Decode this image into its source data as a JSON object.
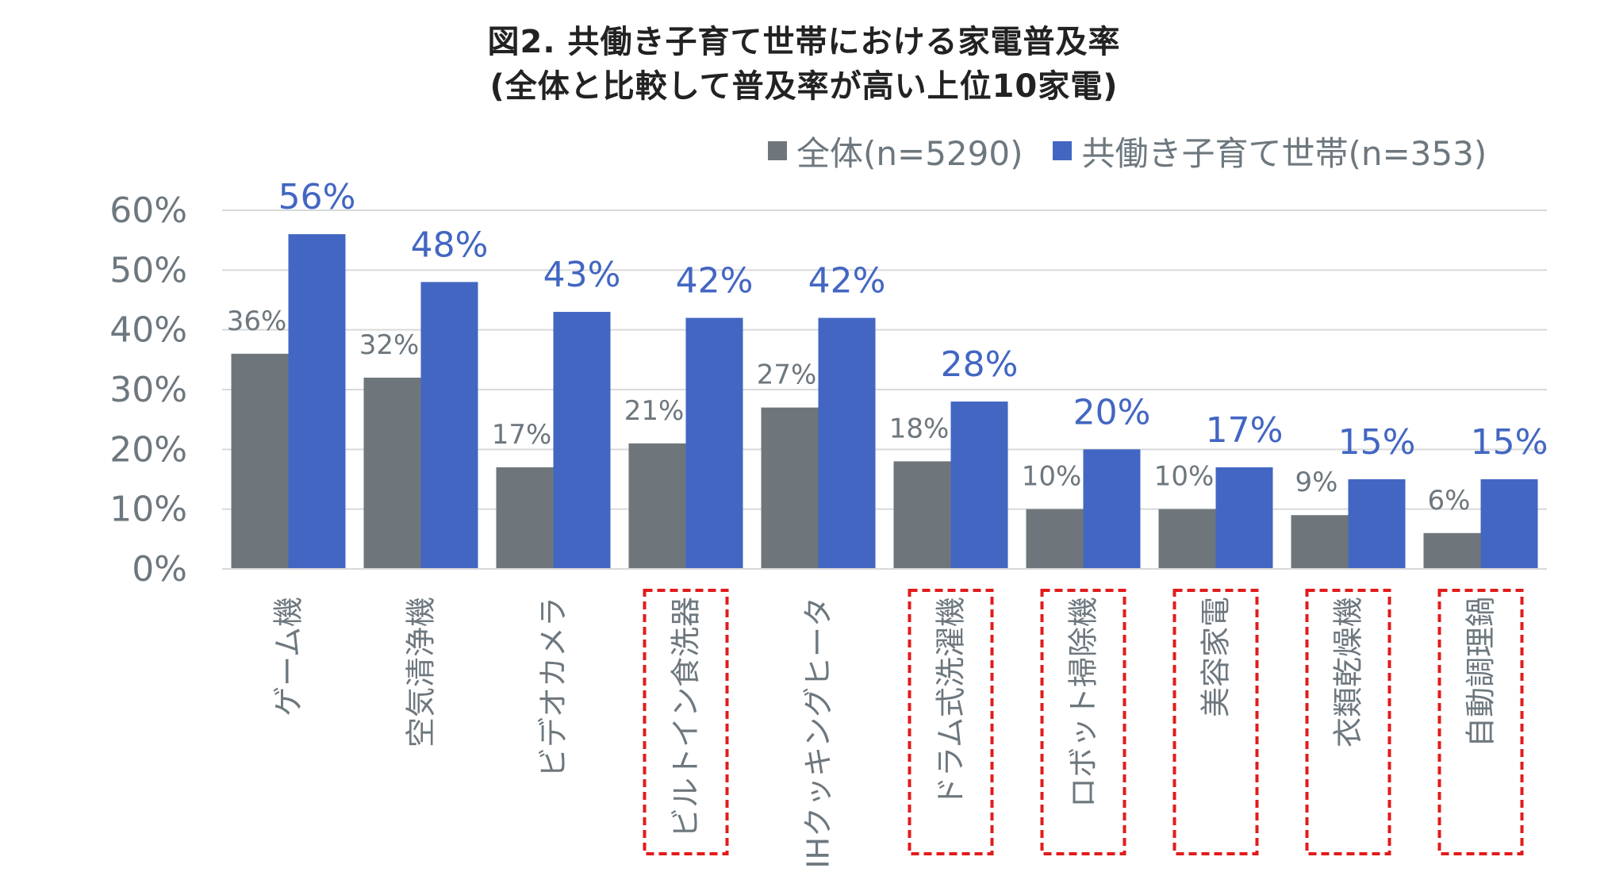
{
  "title": {
    "line1": "図2. 共働き子育て世帯における家電普及率",
    "line2": "(全体と比較して普及率が高い上位10家電)"
  },
  "legend": {
    "all": "全体(n=5290)",
    "dual": "共働き子育て世帯(n=353)"
  },
  "colors": {
    "all": "#6e767b",
    "dual": "#4266c2",
    "grid": "#d9d9d9",
    "axis_text": "#6d777e",
    "highlight_box": "#e21b1b"
  },
  "chart_data": {
    "type": "bar",
    "categories": [
      "ゲーム機",
      "空気清浄機",
      "ビデオカメラ",
      "ビルトイン食洗器",
      "IHクッキングヒータ",
      "ドラム式洗濯機",
      "ロボット掃除機",
      "美容家電",
      "衣類乾燥機",
      "自動調理鍋"
    ],
    "highlighted": [
      false,
      false,
      false,
      true,
      false,
      true,
      true,
      true,
      true,
      true
    ],
    "series": [
      {
        "name": "全体(n=5290)",
        "values": [
          36,
          32,
          17,
          21,
          27,
          18,
          10,
          10,
          9,
          6
        ],
        "labels": [
          "36%",
          "32%",
          "17%",
          "21%",
          "27%",
          "18%",
          "10%",
          "10%",
          "9%",
          "6%"
        ]
      },
      {
        "name": "共働き子育て世帯(n=353)",
        "values": [
          56,
          48,
          43,
          42,
          42,
          28,
          20,
          17,
          15,
          15
        ],
        "labels": [
          "56%",
          "48%",
          "43%",
          "42%",
          "42%",
          "28%",
          "20%",
          "17%",
          "15%",
          "15%"
        ]
      }
    ],
    "ylim": [
      0,
      60
    ],
    "yticks": [
      0,
      10,
      20,
      30,
      40,
      50,
      60
    ],
    "ytick_labels": [
      "0%",
      "10%",
      "20%",
      "30%",
      "40%",
      "50%",
      "60%"
    ],
    "grid": true,
    "legend_position": "top-right"
  }
}
